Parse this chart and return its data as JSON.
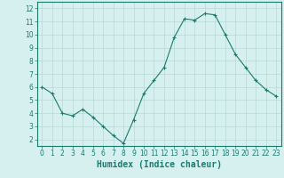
{
  "x": [
    0,
    1,
    2,
    3,
    4,
    5,
    6,
    7,
    8,
    9,
    10,
    11,
    12,
    13,
    14,
    15,
    16,
    17,
    18,
    19,
    20,
    21,
    22,
    23
  ],
  "y": [
    6.0,
    5.5,
    4.0,
    3.8,
    4.3,
    3.7,
    3.0,
    2.3,
    1.7,
    3.5,
    5.5,
    6.5,
    7.5,
    9.8,
    11.2,
    11.1,
    11.6,
    11.5,
    10.0,
    8.5,
    7.5,
    6.5,
    5.8,
    5.3
  ],
  "xlabel": "Humidex (Indice chaleur)",
  "ylim": [
    1.5,
    12.5
  ],
  "xlim": [
    -0.5,
    23.5
  ],
  "yticks": [
    2,
    3,
    4,
    5,
    6,
    7,
    8,
    9,
    10,
    11,
    12
  ],
  "xticks": [
    0,
    1,
    2,
    3,
    4,
    5,
    6,
    7,
    8,
    9,
    10,
    11,
    12,
    13,
    14,
    15,
    16,
    17,
    18,
    19,
    20,
    21,
    22,
    23
  ],
  "line_color": "#1a7a6e",
  "marker_color": "#1a7a6e",
  "bg_color": "#d6f0ef",
  "grid_color": "#b8d8d4",
  "xlabel_color": "#1a7a6e",
  "tick_color": "#1a7a6e",
  "spine_color": "#1a7a6e",
  "xlabel_fontsize": 7,
  "tick_fontsize": 5.5
}
